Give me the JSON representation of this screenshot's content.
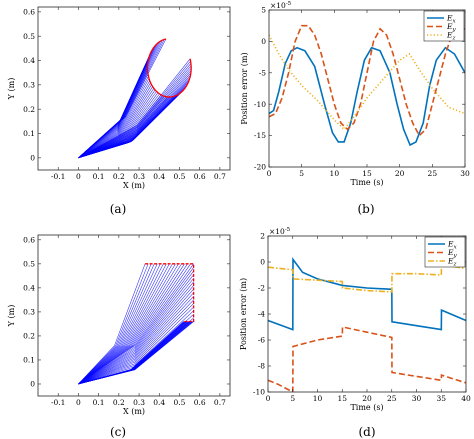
{
  "colors": {
    "ex": "#0072BD",
    "ey": "#D95319",
    "ez": "#EDB120",
    "robot": "#0000ff",
    "path": "#ff0000"
  },
  "chart_data": [
    {
      "id": "a",
      "type": "line",
      "caption": "(a)",
      "xlabel": "X (m)",
      "ylabel": "Y (m)",
      "xlim": [
        -0.2,
        0.75
      ],
      "ylim": [
        -0.05,
        0.62
      ],
      "xticks": [
        -0.1,
        0,
        0.1,
        0.2,
        0.3,
        0.4,
        0.5,
        0.6,
        0.7
      ],
      "xtick_labels": [
        "-0.1",
        "0",
        "0.1",
        "0.2",
        "0.3",
        "0.4",
        "0.5",
        "0.6",
        "0.7"
      ],
      "yticks": [
        0,
        0.1,
        0.2,
        0.3,
        0.4,
        0.5,
        0.6
      ],
      "ytick_labels": [
        "0",
        "0.1",
        "0.2",
        "0.3",
        "0.4",
        "0.5",
        "0.6"
      ],
      "base": [
        0,
        0
      ],
      "path": {
        "shape": "circle",
        "center": [
          0.45,
          0.37
        ],
        "radius": 0.12
      },
      "elbow_scale": 0.45
    },
    {
      "id": "b",
      "type": "line",
      "caption": "(b)",
      "xlabel": "Time (s)",
      "ylabel": "Position error (m)",
      "exponent": "×10",
      "exponent_power": "-5",
      "xlim": [
        0,
        30
      ],
      "ylim": [
        -20,
        5
      ],
      "xticks": [
        0,
        5,
        10,
        15,
        20,
        25,
        30
      ],
      "xtick_labels": [
        "0",
        "5",
        "10",
        "15",
        "20",
        "25",
        "30"
      ],
      "yticks": [
        -20,
        -15,
        -10,
        -5,
        0,
        5
      ],
      "ytick_labels": [
        "-20",
        "-15",
        "-10",
        "-5",
        "0",
        "5"
      ],
      "legend": {
        "position": "top-right",
        "entries": [
          {
            "base": "E",
            "sub": "x"
          },
          {
            "base": "E",
            "sub": "y"
          },
          {
            "base": "E",
            "sub": "z"
          }
        ]
      },
      "series": [
        {
          "key": "ex",
          "dash": "solid",
          "x": [
            0,
            0.7,
            1.5,
            2.5,
            3.4,
            4.3,
            5.5,
            7,
            8.5,
            9.7,
            10.6,
            11.5,
            12.5,
            13.5,
            14.6,
            15.7,
            17,
            18.5,
            19.6,
            20.6,
            21.6,
            22.5,
            23.6,
            24.6,
            25.6,
            27,
            28.4,
            30
          ],
          "y": [
            -11.5,
            -11,
            -8,
            -3.5,
            -1.5,
            -1,
            -1.5,
            -4,
            -10,
            -14.5,
            -16,
            -16,
            -13,
            -8,
            -3,
            -1,
            -1.5,
            -5,
            -10,
            -14,
            -16.5,
            -16,
            -13,
            -7,
            -3,
            -1,
            -2,
            -5
          ]
        },
        {
          "key": "ey",
          "dash": "dashed",
          "x": [
            0,
            1,
            2,
            3,
            4,
            5,
            6,
            7,
            8,
            9,
            10,
            11,
            12,
            13,
            14,
            15,
            16,
            17,
            18,
            19,
            20,
            21,
            22,
            23,
            24,
            25,
            26,
            27,
            28,
            29,
            30
          ],
          "y": [
            -12,
            -11.5,
            -9,
            -5,
            0,
            2.5,
            2.5,
            1,
            -2,
            -6,
            -10,
            -13,
            -14,
            -13,
            -10,
            -5,
            0,
            2,
            1,
            -2,
            -6,
            -10,
            -13,
            -15,
            -14,
            -10,
            -6,
            -2,
            1,
            2,
            2
          ]
        },
        {
          "key": "ez",
          "dash": "dotted",
          "x": [
            0,
            1.5,
            3,
            5,
            7.5,
            10,
            11.5,
            13,
            15,
            17.5,
            20,
            21.5,
            23,
            25,
            27.5,
            30
          ],
          "y": [
            1,
            -2,
            -4.5,
            -7,
            -9.5,
            -12.5,
            -14,
            -12,
            -9,
            -6,
            -3,
            -2,
            -4.5,
            -7.5,
            -10.5,
            -11.5
          ]
        }
      ]
    },
    {
      "id": "c",
      "type": "line",
      "caption": "(c)",
      "xlabel": "X (m)",
      "ylabel": "Y (m)",
      "xlim": [
        -0.2,
        0.75
      ],
      "ylim": [
        -0.05,
        0.62
      ],
      "xticks": [
        -0.1,
        0,
        0.1,
        0.2,
        0.3,
        0.4,
        0.5,
        0.6,
        0.7
      ],
      "xtick_labels": [
        "-0.1",
        "0",
        "0.1",
        "0.2",
        "0.3",
        "0.4",
        "0.5",
        "0.6",
        "0.7"
      ],
      "yticks": [
        0,
        0.1,
        0.2,
        0.3,
        0.4,
        0.5,
        0.6
      ],
      "ytick_labels": [
        "0",
        "0.1",
        "0.2",
        "0.3",
        "0.4",
        "0.5",
        "0.6"
      ],
      "base": [
        0,
        0
      ],
      "path": {
        "shape": "polyline",
        "points": [
          [
            0.33,
            0.5
          ],
          [
            0.57,
            0.5
          ],
          [
            0.57,
            0.26
          ],
          [
            0.52,
            0.26
          ]
        ]
      },
      "elbow_scale": 0.42
    },
    {
      "id": "d",
      "type": "line",
      "caption": "(d)",
      "xlabel": "Time (s)",
      "ylabel": "Position error (m)",
      "exponent": "×10",
      "exponent_power": "-5",
      "xlim": [
        0,
        40
      ],
      "ylim": [
        -10,
        2
      ],
      "xticks": [
        0,
        5,
        10,
        15,
        20,
        25,
        30,
        35,
        40
      ],
      "xtick_labels": [
        "0",
        "5",
        "10",
        "15",
        "20",
        "25",
        "30",
        "35",
        "40"
      ],
      "yticks": [
        -10,
        -8,
        -6,
        -4,
        -2,
        0,
        2
      ],
      "ytick_labels": [
        "-10",
        "-8",
        "-6",
        "-4",
        "-2",
        "0",
        "2"
      ],
      "legend": {
        "position": "top-right",
        "entries": [
          {
            "base": "E",
            "sub": "x"
          },
          {
            "base": "E",
            "sub": "y"
          },
          {
            "base": "E",
            "sub": "z"
          }
        ]
      },
      "series": [
        {
          "key": "ex",
          "dash": "solid",
          "x": [
            0,
            5,
            5.05,
            7,
            10,
            15,
            20,
            25,
            25.05,
            30,
            35,
            35.05,
            40
          ],
          "y": [
            -4.5,
            -5.2,
            0.2,
            -0.8,
            -1.3,
            -1.8,
            -2,
            -2.1,
            -4.6,
            -4.9,
            -5.2,
            -3.7,
            -4.5
          ]
        },
        {
          "key": "ey",
          "dash": "dashed",
          "x": [
            0,
            2,
            5,
            5.05,
            10,
            15,
            15.05,
            20,
            25,
            25.05,
            35,
            35.05,
            40
          ],
          "y": [
            -9.1,
            -9.4,
            -10,
            -6.5,
            -6,
            -5.7,
            -5,
            -5.4,
            -5.8,
            -8.5,
            -9.1,
            -8.7,
            -9.3
          ]
        },
        {
          "key": "ez",
          "dash": "dashdot",
          "x": [
            0,
            5,
            5.05,
            10,
            15,
            15.05,
            20,
            25,
            25.05,
            30,
            35,
            35.05,
            40
          ],
          "y": [
            -0.4,
            -0.6,
            -1.3,
            -1.4,
            -1.5,
            -2,
            -2.2,
            -2.3,
            -0.9,
            -0.9,
            -1,
            -0.2,
            -0.5
          ]
        }
      ]
    }
  ]
}
